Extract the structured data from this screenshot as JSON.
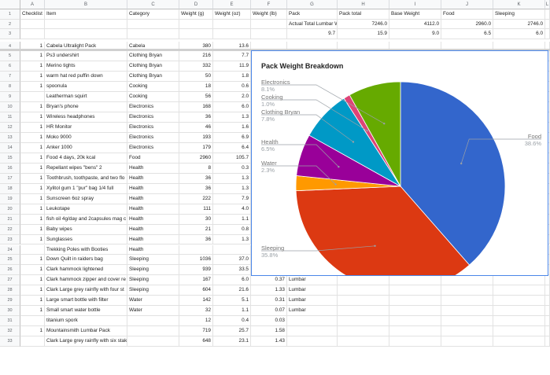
{
  "columns": [
    {
      "label": "A",
      "w": 31
    },
    {
      "label": "B",
      "w": 105
    },
    {
      "label": "C",
      "w": 66
    },
    {
      "label": "D",
      "w": 43
    },
    {
      "label": "E",
      "w": 48
    },
    {
      "label": "F",
      "w": 46
    },
    {
      "label": "G",
      "w": 64
    },
    {
      "label": "H",
      "w": 66
    },
    {
      "label": "I",
      "w": 66
    },
    {
      "label": "J",
      "w": 66
    },
    {
      "label": "K",
      "w": 66
    },
    {
      "label": "L",
      "w": 6
    }
  ],
  "rows": [
    {
      "n": "1",
      "cells": [
        "Checklist",
        "Item",
        "Category",
        "Weight (g)",
        "Weight (oz)",
        "Weight (lb)",
        "Pack",
        "Pack total",
        "Base Weight",
        "Food",
        "Sleeping",
        ""
      ]
    },
    {
      "n": "2",
      "cells": [
        "",
        "",
        "",
        "",
        "",
        "",
        "Actual Total Lumbar W",
        "7246.0",
        "4112.0",
        "2960.0",
        "2746.0",
        ""
      ]
    },
    {
      "n": "3",
      "cells": [
        "",
        "",
        "",
        "",
        "",
        "",
        "9.7",
        "15.9",
        "9.0",
        "6.5",
        "6.0",
        ""
      ]
    },
    {
      "n": "4",
      "cells": [
        "1",
        "Cabela Ultralight Pack",
        "Cabela",
        "380",
        "13.6",
        "",
        "",
        "",
        "",
        "",
        "",
        ""
      ]
    },
    {
      "n": "5",
      "cells": [
        "1",
        "Ps3 undershirt",
        "Clothing Bryan",
        "216",
        "7.7",
        "",
        "",
        "",
        "",
        "",
        "",
        ""
      ]
    },
    {
      "n": "6",
      "cells": [
        "1",
        "Merino tights",
        "Clothing Bryan",
        "332",
        "11.9",
        "",
        "",
        "",
        "",
        "",
        "",
        ""
      ]
    },
    {
      "n": "7",
      "cells": [
        "1",
        "warm hat red puffin down",
        "Clothing Bryan",
        "50",
        "1.8",
        "",
        "",
        "",
        "",
        "",
        "",
        ""
      ]
    },
    {
      "n": "8",
      "cells": [
        "1",
        "spoonula",
        "Cooking",
        "18",
        "0.6",
        "",
        "",
        "",
        "",
        "",
        "",
        ""
      ]
    },
    {
      "n": "9",
      "cells": [
        "",
        "Leatherman squirt",
        "Cooking",
        "56",
        "2.0",
        "",
        "",
        "",
        "",
        "",
        "",
        ""
      ]
    },
    {
      "n": "10",
      "cells": [
        "1",
        "Bryan's phone",
        "Electronics",
        "168",
        "6.0",
        "",
        "",
        "",
        "",
        "",
        "",
        ""
      ]
    },
    {
      "n": "11",
      "cells": [
        "1",
        "Wireless headphones",
        "Electronics",
        "36",
        "1.3",
        "",
        "",
        "",
        "",
        "",
        "",
        ""
      ]
    },
    {
      "n": "12",
      "cells": [
        "1",
        "HR Monitor",
        "Electronics",
        "46",
        "1.6",
        "",
        "",
        "",
        "",
        "",
        "",
        ""
      ]
    },
    {
      "n": "13",
      "cells": [
        "1",
        "Moko 9000",
        "Electronics",
        "193",
        "6.9",
        "",
        "",
        "",
        "",
        "",
        "",
        ""
      ]
    },
    {
      "n": "14",
      "cells": [
        "1",
        "Anker 1000",
        "Electronics",
        "179",
        "6.4",
        "",
        "",
        "",
        "",
        "",
        "",
        ""
      ]
    },
    {
      "n": "15",
      "cells": [
        "1",
        "Food 4 days, 20k kcal",
        "Food",
        "2960",
        "105.7",
        "",
        "",
        "",
        "",
        "",
        "",
        ""
      ]
    },
    {
      "n": "16",
      "cells": [
        "1",
        "Repellant wipes \"bens\" 2",
        "Health",
        "8",
        "0.3",
        "",
        "",
        "",
        "",
        "",
        "",
        ""
      ]
    },
    {
      "n": "17",
      "cells": [
        "1",
        "Toothbrush, toothpaste, and two flo",
        "Health",
        "36",
        "1.3",
        "",
        "",
        "",
        "",
        "",
        "",
        ""
      ]
    },
    {
      "n": "18",
      "cells": [
        "1",
        "Xylitol gum 1 \"pur\" bag 1/4 full",
        "Health",
        "36",
        "1.3",
        "",
        "",
        "",
        "",
        "",
        "",
        ""
      ]
    },
    {
      "n": "19",
      "cells": [
        "1",
        "Sunscreen 6oz spray",
        "Health",
        "222",
        "7.9",
        "",
        "",
        "",
        "",
        "",
        "",
        ""
      ]
    },
    {
      "n": "20",
      "cells": [
        "1",
        "Leukotape",
        "Health",
        "111",
        "4.0",
        "",
        "",
        "",
        "",
        "",
        "",
        ""
      ]
    },
    {
      "n": "21",
      "cells": [
        "1",
        "fish oil 4g/day and 2capsules mag c",
        "Health",
        "30",
        "1.1",
        "",
        "",
        "",
        "",
        "",
        "",
        ""
      ]
    },
    {
      "n": "22",
      "cells": [
        "1",
        "Baby wipes",
        "Health",
        "21",
        "0.8",
        "",
        "",
        "",
        "",
        "",
        "",
        ""
      ]
    },
    {
      "n": "23",
      "cells": [
        "1",
        "Sunglasses",
        "Health",
        "36",
        "1.3",
        "",
        "",
        "",
        "",
        "",
        "",
        ""
      ]
    },
    {
      "n": "24",
      "cells": [
        "",
        "Trekking Poles with Booties",
        "Health",
        "",
        "",
        "",
        "",
        "",
        "",
        "",
        "",
        ""
      ]
    },
    {
      "n": "25",
      "cells": [
        "1",
        "Down Quilt in raiders bag",
        "Sleeping",
        "1036",
        "37.0",
        "2.28",
        "Lumbar",
        "",
        "",
        "",
        "",
        ""
      ]
    },
    {
      "n": "26",
      "cells": [
        "1",
        "Clark hammock lightened",
        "Sleeping",
        "939",
        "33.5",
        "2.07",
        "Lumbar",
        "",
        "",
        "",
        "",
        ""
      ]
    },
    {
      "n": "27",
      "cells": [
        "1",
        "Clark hammock zipper and cover re",
        "Sleeping",
        "167",
        "6.0",
        "0.37",
        "Lumbar",
        "",
        "",
        "",
        "",
        ""
      ]
    },
    {
      "n": "28",
      "cells": [
        "1",
        "Clark Large grey rainfly with four st",
        "Sleeping",
        "604",
        "21.6",
        "1.33",
        "Lumbar",
        "",
        "",
        "",
        "",
        ""
      ]
    },
    {
      "n": "29",
      "cells": [
        "1",
        "Large smart bottle with filter",
        "Water",
        "142",
        "5.1",
        "0.31",
        "Lumbar",
        "",
        "",
        "",
        "",
        ""
      ]
    },
    {
      "n": "30",
      "cells": [
        "1",
        "Small smart water bottle",
        "Water",
        "32",
        "1.1",
        "0.07",
        "Lumbar",
        "",
        "",
        "",
        "",
        ""
      ]
    },
    {
      "n": "31",
      "cells": [
        "",
        "titanium spork",
        "",
        "12",
        "0.4",
        "0.03",
        "",
        "",
        "",
        "",
        "",
        ""
      ]
    },
    {
      "n": "32",
      "cells": [
        "1",
        "Mountainsmith Lumbar Pack",
        "",
        "719",
        "25.7",
        "1.58",
        "",
        "",
        "",
        "",
        "",
        ""
      ]
    },
    {
      "n": "33",
      "cells": [
        "",
        "Clark Large grey rainfly with six stakes",
        "",
        "648",
        "23.1",
        "1.43",
        "",
        "",
        "",
        "",
        "",
        ""
      ]
    }
  ],
  "chart_data": {
    "type": "pie",
    "title": "Pack Weight Breakdown",
    "slices": [
      {
        "name": "Food",
        "pct": 38.6,
        "label": "38.6%",
        "color": "#3366cc"
      },
      {
        "name": "Sleeping",
        "pct": 35.8,
        "label": "35.8%",
        "color": "#dc3912"
      },
      {
        "name": "Water",
        "pct": 2.3,
        "label": "2.3%",
        "color": "#ff9900"
      },
      {
        "name": "Health",
        "pct": 6.5,
        "label": "6.5%",
        "color": "#990099"
      },
      {
        "name": "Clothing Bryan",
        "pct": 7.8,
        "label": "7.8%",
        "color": "#0099c6"
      },
      {
        "name": "Cooking",
        "pct": 1.0,
        "label": "1.0%",
        "color": "#dd4477"
      },
      {
        "name": "Electronics",
        "pct": 8.1,
        "label": "8.1%",
        "color": "#66aa00"
      }
    ]
  }
}
